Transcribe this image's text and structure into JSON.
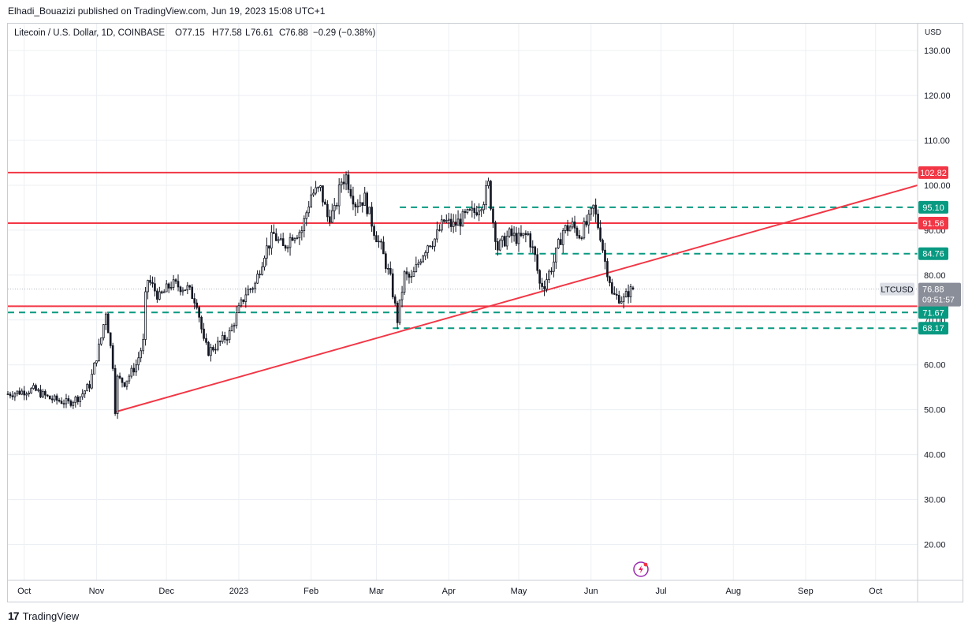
{
  "header": {
    "published": "Elhadi_Bouazizi published on TradingView.com, Jun 19, 2023 15:08 UTC+1"
  },
  "legend": {
    "symbol": "Litecoin / U.S. Dollar, 1D, COINBASE",
    "o_label": "O",
    "o": "77.15",
    "h_label": "H",
    "h": "77.58",
    "l_label": "L",
    "l": "76.61",
    "c_label": "C",
    "c": "76.88",
    "change": "−0.29 (−0.38%)"
  },
  "footer": {
    "brand": "TradingView",
    "logo": "17"
  },
  "colors": {
    "up": "#131722",
    "down": "#131722",
    "resistance": "#f23645",
    "dashed": "#089981",
    "grid": "#eceff3",
    "text": "#131722",
    "price_tag": "#8a8e99"
  },
  "chart_data": {
    "type": "candlestick",
    "title": "Litecoin / U.S. Dollar, 1D, COINBASE",
    "y_axis_unit": "USD",
    "ylim": [
      12,
      136
    ],
    "y_ticks": [
      20,
      30,
      40,
      50,
      60,
      70,
      80,
      90,
      100,
      110,
      120,
      130
    ],
    "y_tick_labels": [
      "20.00",
      "30.00",
      "40.00",
      "50.00",
      "60.00",
      "70.00",
      "80.00",
      "90.00",
      "100.00",
      "110.00",
      "120.00",
      "130.00"
    ],
    "x_range": [
      "2022-09-24",
      "2023-10-19"
    ],
    "x_ticks": [
      {
        "label": "Oct",
        "date": "2022-10-01"
      },
      {
        "label": "Nov",
        "date": "2022-11-01"
      },
      {
        "label": "Dec",
        "date": "2022-12-01"
      },
      {
        "label": "2023",
        "date": "2023-01-01"
      },
      {
        "label": "Feb",
        "date": "2023-02-01"
      },
      {
        "label": "Mar",
        "date": "2023-03-01"
      },
      {
        "label": "Apr",
        "date": "2023-04-01"
      },
      {
        "label": "May",
        "date": "2023-05-01"
      },
      {
        "label": "Jun",
        "date": "2023-06-01"
      },
      {
        "label": "Jul",
        "date": "2023-07-01"
      },
      {
        "label": "Aug",
        "date": "2023-08-01"
      },
      {
        "label": "Sep",
        "date": "2023-09-01"
      },
      {
        "label": "Oct",
        "date": "2023-10-01"
      }
    ],
    "price_path": [
      [
        "2022-09-24",
        53.5
      ],
      [
        "2022-10-05",
        54.5
      ],
      [
        "2022-10-12",
        52.5
      ],
      [
        "2022-10-20",
        51.5
      ],
      [
        "2022-10-25",
        53
      ],
      [
        "2022-10-29",
        55.5
      ],
      [
        "2022-11-03",
        66
      ],
      [
        "2022-11-05",
        72
      ],
      [
        "2022-11-08",
        60
      ],
      [
        "2022-11-09",
        50
      ],
      [
        "2022-11-10",
        57
      ],
      [
        "2022-11-13",
        56
      ],
      [
        "2022-11-18",
        60
      ],
      [
        "2022-11-21",
        65
      ],
      [
        "2022-11-22",
        75
      ],
      [
        "2022-11-23",
        79
      ],
      [
        "2022-11-28",
        75
      ],
      [
        "2022-12-03",
        78
      ],
      [
        "2022-12-10",
        77
      ],
      [
        "2022-12-14",
        74
      ],
      [
        "2022-12-17",
        65
      ],
      [
        "2022-12-19",
        63
      ],
      [
        "2022-12-24",
        65
      ],
      [
        "2022-12-28",
        67
      ],
      [
        "2022-12-31",
        71
      ],
      [
        "2023-01-04",
        76
      ],
      [
        "2023-01-08",
        78
      ],
      [
        "2023-01-12",
        85
      ],
      [
        "2023-01-16",
        89
      ],
      [
        "2023-01-20",
        86
      ],
      [
        "2023-01-24",
        89
      ],
      [
        "2023-01-28",
        90
      ],
      [
        "2023-02-01",
        98
      ],
      [
        "2023-02-05",
        99
      ],
      [
        "2023-02-08",
        93
      ],
      [
        "2023-02-11",
        94
      ],
      [
        "2023-02-14",
        101
      ],
      [
        "2023-02-16",
        102
      ],
      [
        "2023-02-20",
        96
      ],
      [
        "2023-02-24",
        97
      ],
      [
        "2023-02-28",
        90
      ],
      [
        "2023-03-03",
        86
      ],
      [
        "2023-03-07",
        79
      ],
      [
        "2023-03-10",
        70
      ],
      [
        "2023-03-13",
        80
      ],
      [
        "2023-03-16",
        79
      ],
      [
        "2023-03-20",
        84
      ],
      [
        "2023-03-23",
        87
      ],
      [
        "2023-03-26",
        88
      ],
      [
        "2023-03-30",
        92
      ],
      [
        "2023-04-03",
        91
      ],
      [
        "2023-04-08",
        93
      ],
      [
        "2023-04-12",
        94
      ],
      [
        "2023-04-16",
        97
      ],
      [
        "2023-04-18",
        100
      ],
      [
        "2023-04-20",
        92
      ],
      [
        "2023-04-22",
        86
      ],
      [
        "2023-04-27",
        89
      ],
      [
        "2023-05-01",
        88
      ],
      [
        "2023-05-05",
        89
      ],
      [
        "2023-05-08",
        84
      ],
      [
        "2023-05-10",
        78
      ],
      [
        "2023-05-12",
        78
      ],
      [
        "2023-05-16",
        83
      ],
      [
        "2023-05-20",
        90
      ],
      [
        "2023-05-24",
        91
      ],
      [
        "2023-05-27",
        89
      ],
      [
        "2023-05-31",
        92
      ],
      [
        "2023-06-02",
        95
      ],
      [
        "2023-06-05",
        89
      ],
      [
        "2023-06-07",
        83
      ],
      [
        "2023-06-09",
        79
      ],
      [
        "2023-06-10",
        75.5
      ],
      [
        "2023-06-13",
        75
      ],
      [
        "2023-06-15",
        74.5
      ],
      [
        "2023-06-17",
        76.2
      ],
      [
        "2023-06-19",
        76.88
      ]
    ],
    "horizontal_levels": [
      {
        "price": 102.82,
        "label": "102.82",
        "style": "solid",
        "color": "#f23645",
        "from": "2022-09-24"
      },
      {
        "price": 91.56,
        "label": "91.56",
        "style": "solid",
        "color": "#f23645",
        "from": "2022-09-24"
      },
      {
        "price": 73.05,
        "label": "73.05",
        "style": "solid",
        "color": "#f23645",
        "from": "2022-09-24"
      },
      {
        "price": 95.1,
        "label": "95.10",
        "style": "dashed",
        "color": "#089981",
        "from": "2023-03-11"
      },
      {
        "price": 84.76,
        "label": "84.76",
        "style": "dashed",
        "color": "#089981",
        "from": "2023-04-21"
      },
      {
        "price": 71.67,
        "label": "71.67",
        "style": "dashed",
        "color": "#089981",
        "from": "2022-09-24"
      },
      {
        "price": 68.17,
        "label": "68.17",
        "style": "dashed",
        "color": "#089981",
        "from": "2023-03-08"
      }
    ],
    "trendline": {
      "from": [
        "2022-11-09",
        49.5
      ],
      "to": [
        "2023-10-19",
        100
      ],
      "color": "#f23645"
    },
    "last_price": {
      "symbol": "LTCUSD",
      "price": 76.88,
      "label": "76.88",
      "countdown": "09:51:57"
    }
  }
}
